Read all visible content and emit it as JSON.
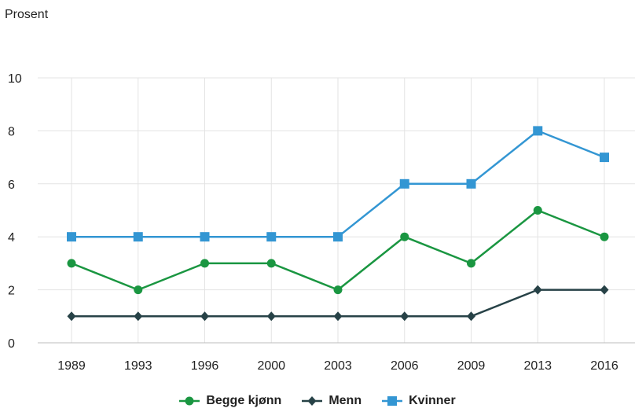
{
  "chart_data": {
    "type": "line",
    "ylabel": "Prosent",
    "categories": [
      "1989",
      "1993",
      "1996",
      "2000",
      "2003",
      "2006",
      "2009",
      "2013",
      "2016"
    ],
    "ylim": [
      0,
      10
    ],
    "yticks": [
      0,
      2,
      4,
      6,
      8,
      10
    ],
    "grid": true,
    "legend_position": "bottom",
    "series": [
      {
        "name": "Begge kjønn",
        "color": "#1a9641",
        "marker": "circle",
        "values": [
          3,
          2,
          3,
          3,
          2,
          4,
          3,
          5,
          4
        ]
      },
      {
        "name": "Menn",
        "color": "#274247",
        "marker": "diamond",
        "values": [
          1,
          1,
          1,
          1,
          1,
          1,
          1,
          2,
          2
        ]
      },
      {
        "name": "Kvinner",
        "color": "#3396d3",
        "marker": "square",
        "values": [
          4,
          4,
          4,
          4,
          4,
          6,
          6,
          8,
          7
        ]
      }
    ]
  }
}
